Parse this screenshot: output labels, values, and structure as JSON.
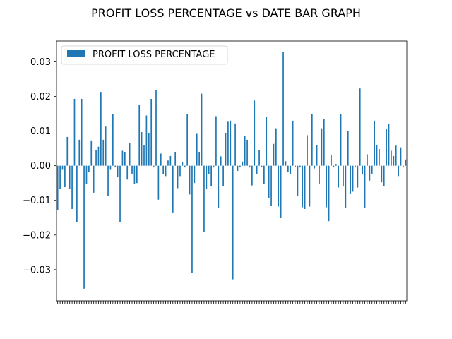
{
  "chart_data": {
    "type": "bar",
    "title": "PROFIT LOSS PERCENTAGE vs DATE BAR GRAPH",
    "xlabel": "",
    "ylabel": "",
    "ylim": [
      -0.039,
      0.036
    ],
    "yticks": [
      -0.03,
      -0.02,
      -0.01,
      0.0,
      0.01,
      0.02,
      0.03
    ],
    "ytick_labels": [
      "−0.03",
      "−0.02",
      "−0.01",
      "0.00",
      "0.01",
      "0.02",
      "0.03"
    ],
    "grid": false,
    "legend_position": "upper-left",
    "series": [
      {
        "name": "PROFIT LOSS PERCENTAGE",
        "color": "#1f77b4",
        "values": [
          -0.0128,
          -0.0068,
          -0.0012,
          -0.0062,
          0.0083,
          -0.0068,
          -0.0125,
          0.0193,
          -0.0162,
          0.0075,
          0.0193,
          -0.0355,
          -0.0052,
          -0.0018,
          0.0073,
          -0.0078,
          0.0045,
          0.0055,
          0.0213,
          0.0075,
          0.0113,
          -0.0088,
          -0.0012,
          0.0148,
          -0.0005,
          -0.0032,
          -0.0162,
          0.0043,
          0.004,
          -0.004,
          0.0065,
          -0.0023,
          -0.0053,
          -0.005,
          0.0175,
          0.0097,
          0.006,
          0.0145,
          0.0095,
          0.0193,
          -0.0005,
          0.0218,
          -0.0098,
          0.0035,
          -0.0025,
          -0.003,
          0.0015,
          0.0028,
          -0.0135,
          0.004,
          -0.0065,
          -0.003,
          0.001,
          -0.0005,
          0.015,
          -0.0083,
          -0.031,
          -0.005,
          0.0092,
          0.004,
          0.0208,
          -0.0192,
          -0.0068,
          -0.0025,
          -0.006,
          -0.0005,
          0.0143,
          -0.0123,
          0.0027,
          -0.0058,
          0.0093,
          0.0127,
          0.013,
          -0.0328,
          0.0122,
          -0.0015,
          -0.0005,
          0.0012,
          0.0085,
          0.0075,
          -0.0005,
          -0.0057,
          0.0188,
          -0.0025,
          0.0045,
          -0.0005,
          -0.0053,
          0.014,
          -0.0093,
          -0.0115,
          0.0063,
          0.0108,
          -0.0118,
          -0.015,
          0.0328,
          0.0013,
          -0.0018,
          -0.0025,
          0.013,
          -0.0003,
          -0.0088,
          -0.0005,
          -0.012,
          -0.0125,
          0.0088,
          -0.0118,
          0.015,
          -0.0008,
          0.006,
          -0.0053,
          0.0108,
          0.0135,
          -0.012,
          -0.016,
          0.003,
          -0.0005,
          0.0005,
          -0.0063,
          0.0148,
          -0.006,
          -0.0123,
          0.01,
          -0.008,
          -0.0075,
          -0.0005,
          -0.0063,
          0.0223,
          -0.0025,
          -0.0122,
          0.0033,
          -0.0043,
          -0.0023,
          0.013,
          0.006,
          0.0048,
          -0.0048,
          -0.0058,
          0.0105,
          0.012,
          0.0043,
          0.0028,
          0.0058,
          -0.003,
          0.0053,
          -0.0005,
          0.0018
        ]
      }
    ]
  }
}
